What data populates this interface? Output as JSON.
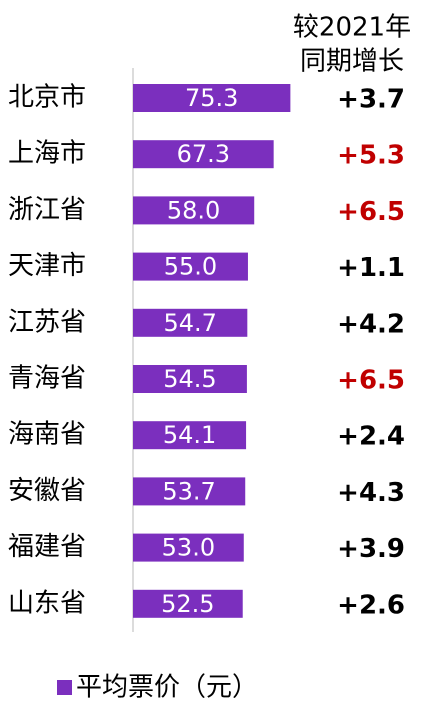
{
  "chart_data": {
    "type": "bar",
    "orientation": "horizontal",
    "categories": [
      "北京市",
      "上海市",
      "浙江省",
      "天津市",
      "江苏省",
      "青海省",
      "海南省",
      "安徽省",
      "福建省",
      "山东省"
    ],
    "series": [
      {
        "name": "平均票价（元）",
        "color": "#7b2fbe",
        "values": [
          75.3,
          67.3,
          58.0,
          55.0,
          54.7,
          54.5,
          54.1,
          53.7,
          53.0,
          52.5
        ],
        "value_labels": [
          "75.3",
          "67.3",
          "58.0",
          "55.0",
          "54.7",
          "54.5",
          "54.1",
          "53.7",
          "53.0",
          "52.5"
        ]
      }
    ],
    "xlim": [
      0,
      100
    ],
    "column_header": [
      "较2021年",
      "同期增长"
    ],
    "changes": [
      3.7,
      5.3,
      6.5,
      1.1,
      4.2,
      6.5,
      2.4,
      4.3,
      3.9,
      2.6
    ],
    "change_labels": [
      "+3.7",
      "+5.3",
      "+6.5",
      "+1.1",
      "+4.2",
      "+6.5",
      "+2.4",
      "+4.3",
      "+3.9",
      "+2.6"
    ],
    "change_colors": [
      "#000000",
      "#c00000",
      "#c00000",
      "#000000",
      "#000000",
      "#c00000",
      "#000000",
      "#000000",
      "#000000",
      "#000000"
    ],
    "legend": "bottom"
  }
}
